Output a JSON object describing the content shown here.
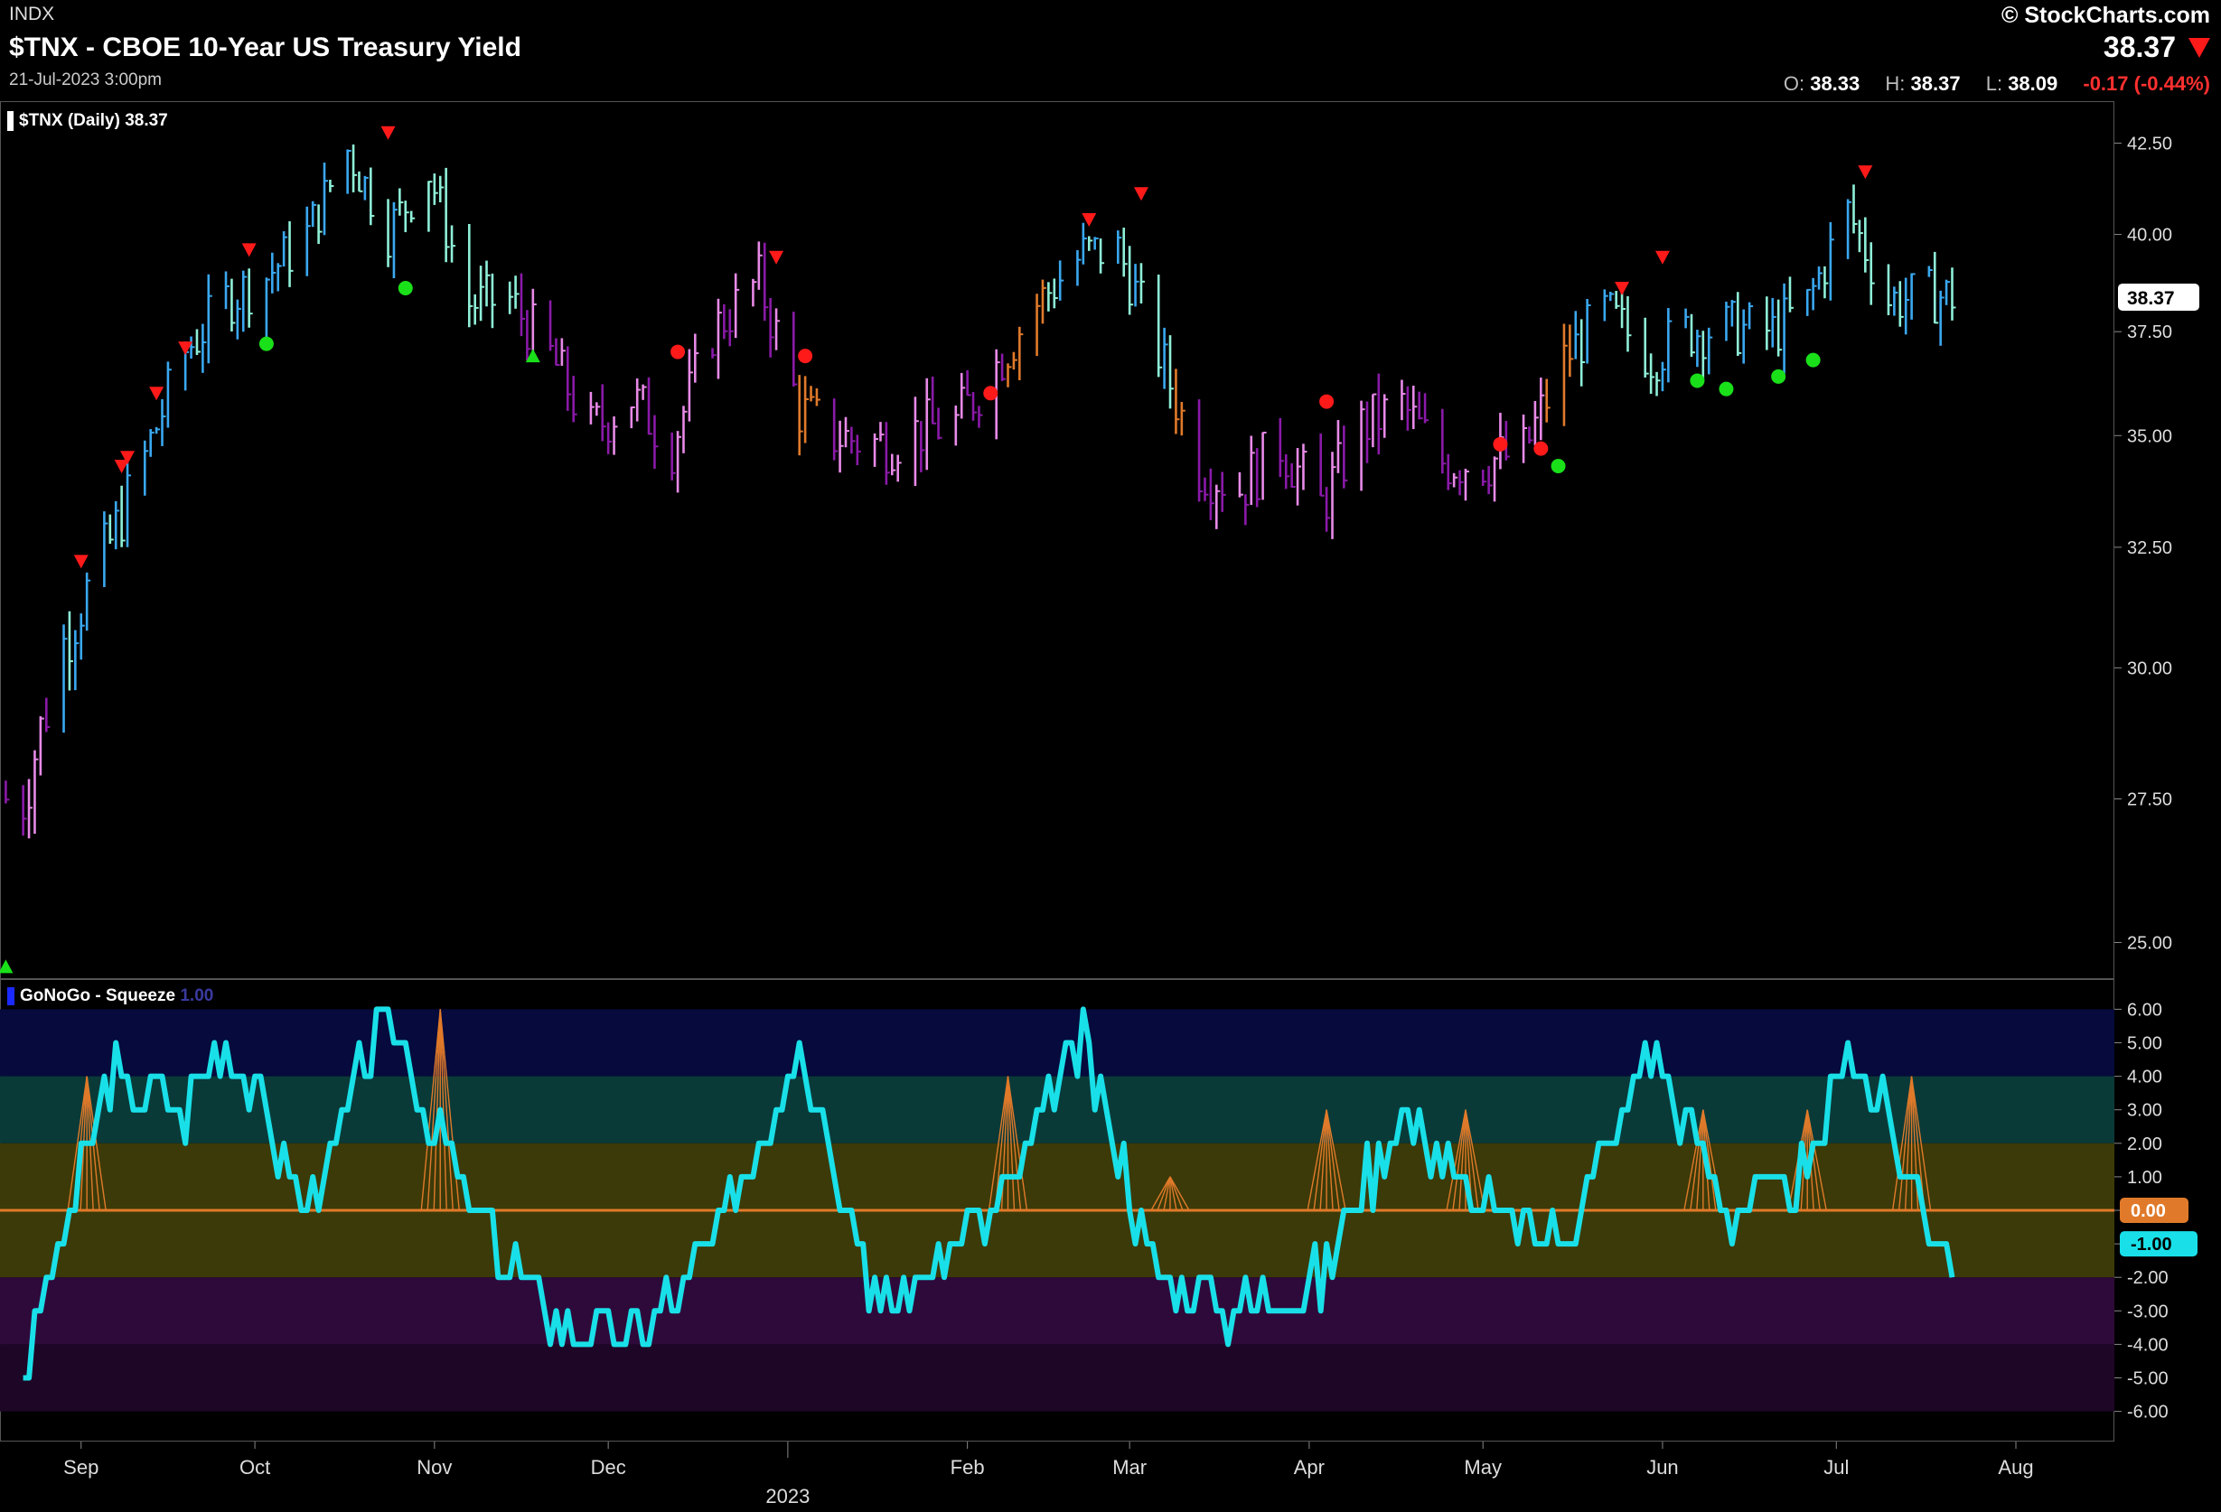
{
  "header": {
    "exchange": "INDX",
    "title": "$TNX - CBOE 10-Year US Treasury Yield",
    "date": "21-Jul-2023 3:00pm",
    "brand": "© StockCharts.com",
    "last_price": "38.37",
    "ohlc": {
      "open_label": "O:",
      "open": "38.33",
      "high_label": "H:",
      "high": "38.37",
      "low_label": "L:",
      "low": "38.09",
      "change": "-0.17 (-0.44%)"
    }
  },
  "colors": {
    "background": "#000000",
    "go_strong": "#3aa8f0",
    "go_weak": "#8ef0d8",
    "nogo_strong": "#8a1aa8",
    "nogo_weak": "#e88ae8",
    "neutral": "#e07a2a",
    "oscillator": "#19e0e8",
    "zero_line": "#e07a2a",
    "trend_triangle": "#ff1a1a",
    "red_dot": "#ff1a1a",
    "green_dot": "#1ae01a"
  },
  "chart_data": [
    {
      "type": "bar",
      "legend": "$TNX (Daily) 38.37",
      "last_value_label": "38.37",
      "yaxis_ticks": [
        "42.50",
        "40.00",
        "37.50",
        "35.00",
        "32.50",
        "30.00",
        "27.50",
        "25.00"
      ],
      "ylim": [
        24.4,
        43.7
      ],
      "y_scale": "log",
      "x_labels": [
        "Sep",
        "Oct",
        "Nov",
        "Dec",
        "Feb",
        "Mar",
        "Apr",
        "May",
        "Jun",
        "Jul",
        "Aug"
      ],
      "year_label": "2023",
      "series_closes": [
        {
          "date": "2022-08-22",
          "close": 27.5
        },
        {
          "date": "2022-08-29",
          "close": 30.5
        },
        {
          "date": "2022-09-06",
          "close": 32.6
        },
        {
          "date": "2022-09-12",
          "close": 34.5
        },
        {
          "date": "2022-09-19",
          "close": 37.0
        },
        {
          "date": "2022-09-26",
          "close": 38.3
        },
        {
          "date": "2022-10-03",
          "close": 38.9
        },
        {
          "date": "2022-10-10",
          "close": 40.0
        },
        {
          "date": "2022-10-17",
          "close": 42.3
        },
        {
          "date": "2022-10-24",
          "close": 40.1
        },
        {
          "date": "2022-10-31",
          "close": 41.7
        },
        {
          "date": "2022-11-07",
          "close": 38.2
        },
        {
          "date": "2022-11-14",
          "close": 38.3
        },
        {
          "date": "2022-11-21",
          "close": 36.9
        },
        {
          "date": "2022-11-28",
          "close": 35.1
        },
        {
          "date": "2022-12-05",
          "close": 35.9
        },
        {
          "date": "2022-12-12",
          "close": 34.8
        },
        {
          "date": "2022-12-19",
          "close": 37.5
        },
        {
          "date": "2022-12-27",
          "close": 38.8
        },
        {
          "date": "2023-01-03",
          "close": 35.6
        },
        {
          "date": "2023-01-09",
          "close": 35.0
        },
        {
          "date": "2023-01-17",
          "close": 34.8
        },
        {
          "date": "2023-01-23",
          "close": 35.1
        },
        {
          "date": "2023-01-30",
          "close": 35.3
        },
        {
          "date": "2023-02-06",
          "close": 36.7
        },
        {
          "date": "2023-02-13",
          "close": 38.2
        },
        {
          "date": "2023-02-21",
          "close": 39.5
        },
        {
          "date": "2023-02-27",
          "close": 39.6
        },
        {
          "date": "2023-03-06",
          "close": 37.0
        },
        {
          "date": "2023-03-13",
          "close": 34.3
        },
        {
          "date": "2023-03-20",
          "close": 33.8
        },
        {
          "date": "2023-03-27",
          "close": 34.8
        },
        {
          "date": "2023-04-03",
          "close": 33.4
        },
        {
          "date": "2023-04-10",
          "close": 35.2
        },
        {
          "date": "2023-04-17",
          "close": 35.7
        },
        {
          "date": "2023-04-24",
          "close": 34.4
        },
        {
          "date": "2023-05-01",
          "close": 34.4
        },
        {
          "date": "2023-05-08",
          "close": 34.6
        },
        {
          "date": "2023-05-15",
          "close": 36.8
        },
        {
          "date": "2023-05-22",
          "close": 38.0
        },
        {
          "date": "2023-05-30",
          "close": 36.9
        },
        {
          "date": "2023-06-05",
          "close": 37.5
        },
        {
          "date": "2023-06-12",
          "close": 37.6
        },
        {
          "date": "2023-06-20",
          "close": 37.5
        },
        {
          "date": "2023-06-26",
          "close": 38.2
        },
        {
          "date": "2023-07-03",
          "close": 40.6
        },
        {
          "date": "2023-07-10",
          "close": 38.3
        },
        {
          "date": "2023-07-17",
          "close": 38.4
        }
      ]
    },
    {
      "type": "line",
      "legend": "GoNoGo - Squeeze",
      "legend_faint": "1.00",
      "yaxis_ticks": [
        "6.00",
        "5.00",
        "4.00",
        "3.00",
        "2.00",
        "1.00",
        "0.00",
        "-1.00",
        "-2.00",
        "-3.00",
        "-4.00",
        "-5.00",
        "-6.00"
      ],
      "ylim": [
        -6.9,
        6.9
      ],
      "zero_label": "0.00",
      "last_value_label": "-1.00",
      "series": [
        {
          "x": [
            "2022-08-22",
            "2022-09-06",
            "2022-09-19",
            "2022-09-26",
            "2022-10-10",
            "2022-10-24",
            "2022-11-07",
            "2022-11-21",
            "2022-12-05",
            "2022-12-19",
            "2023-01-03",
            "2023-01-17",
            "2023-02-06",
            "2023-02-21",
            "2023-03-06",
            "2023-03-20",
            "2023-04-03",
            "2023-04-17",
            "2023-05-01",
            "2023-05-15",
            "2023-05-30",
            "2023-06-12",
            "2023-06-26",
            "2023-07-03",
            "2023-07-17",
            "2023-07-21"
          ],
          "values": [
            -5,
            4,
            3,
            5,
            0,
            6,
            0,
            -3,
            -4,
            -1,
            5,
            -3,
            0,
            5,
            -2,
            -3,
            -2,
            3,
            0,
            -1,
            5,
            0,
            1,
            5,
            0,
            -1
          ]
        }
      ]
    }
  ]
}
